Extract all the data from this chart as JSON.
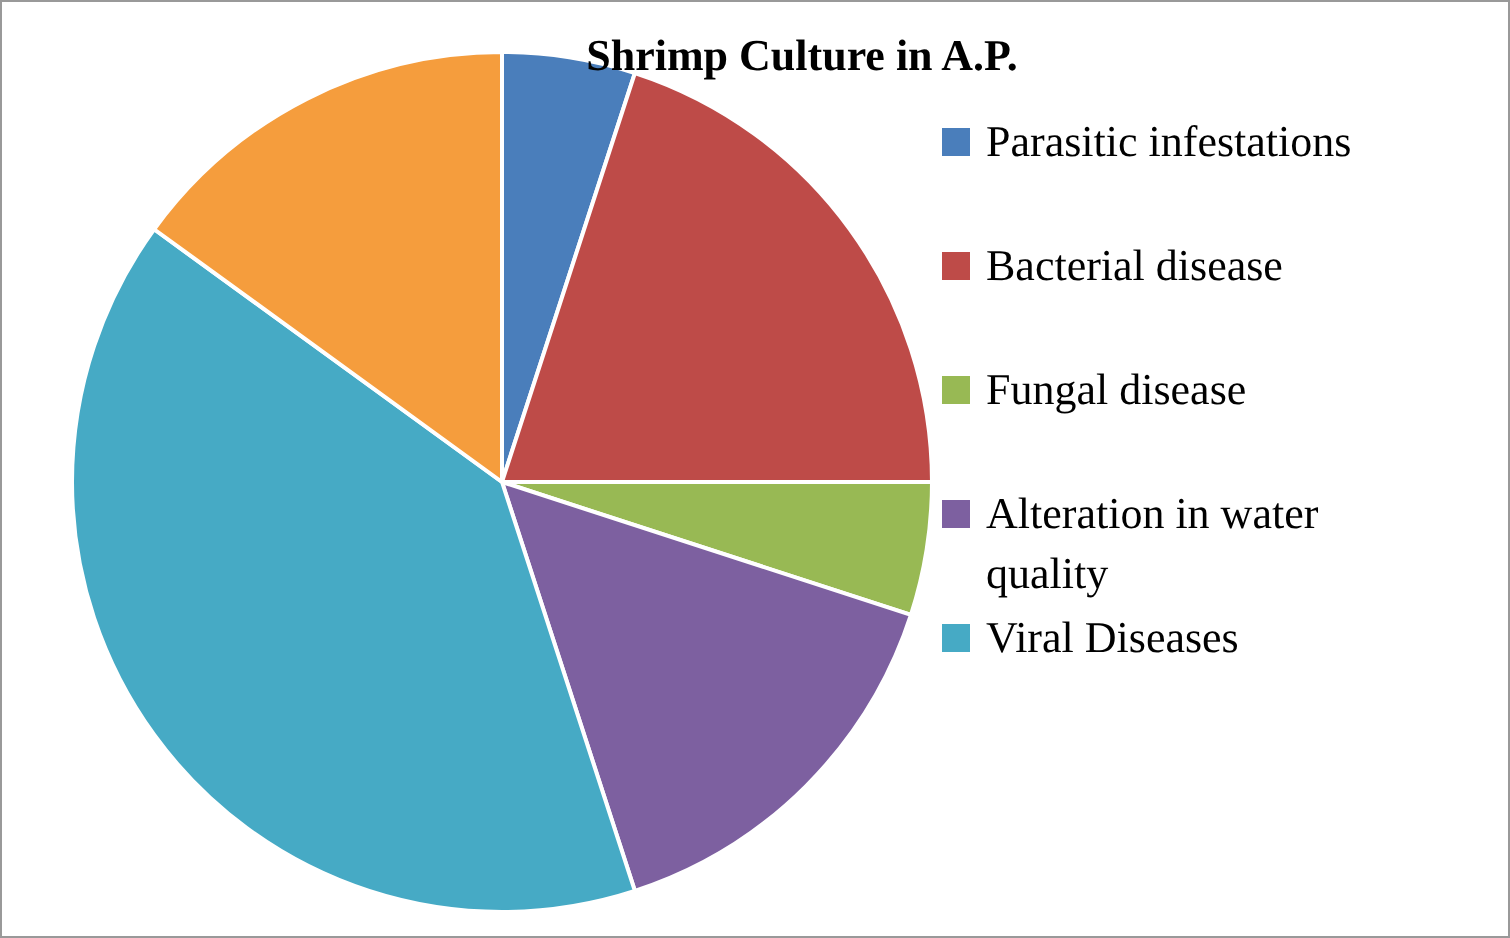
{
  "chart_data": {
    "type": "pie",
    "title": "Shrimp Culture in A.P.",
    "categories": [
      "Parasitic infestations",
      "Bacterial disease",
      "Fungal disease",
      "Alteration in water quality",
      "Viral Diseases",
      null
    ],
    "values": [
      5,
      20,
      5,
      15,
      40,
      15
    ],
    "colors": [
      "#4a7ebb",
      "#be4b48",
      "#98b954",
      "#7d60a0",
      "#46aac5",
      "#f59d3d"
    ],
    "legend": "right"
  }
}
